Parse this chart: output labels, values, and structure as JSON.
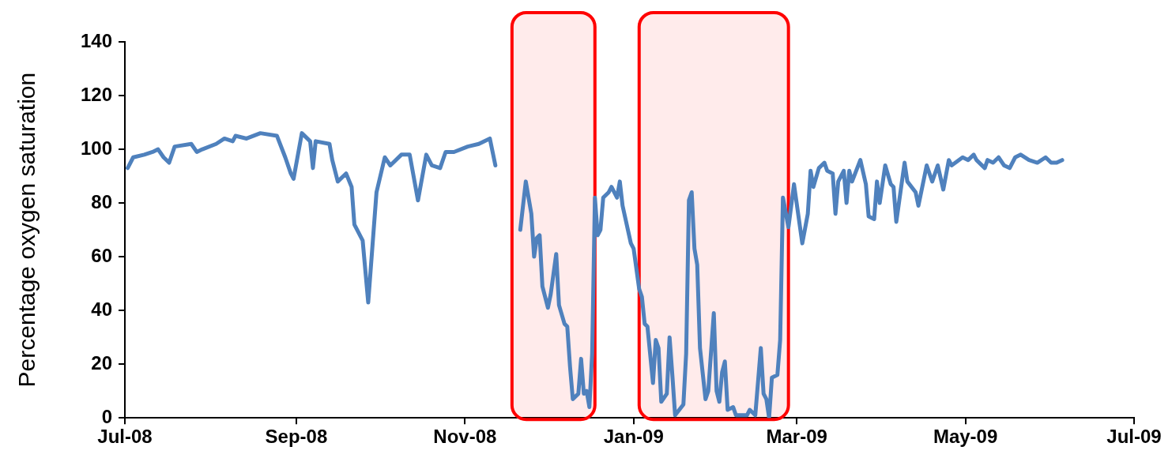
{
  "chart_data": {
    "type": "line",
    "ylabel": "Percentage oxygen saturation",
    "xlim": [
      "2008-07-01",
      "2009-07-01"
    ],
    "xticks": [
      {
        "value": "2008-07-01",
        "label": "Jul-08"
      },
      {
        "value": "2008-09-01",
        "label": "Sep-08"
      },
      {
        "value": "2008-11-01",
        "label": "Nov-08"
      },
      {
        "value": "2009-01-01",
        "label": "Jan-09"
      },
      {
        "value": "2009-03-01",
        "label": "Mar-09"
      },
      {
        "value": "2009-05-01",
        "label": "May-09"
      },
      {
        "value": "2009-07-01",
        "label": "Jul-09"
      }
    ],
    "ylim": [
      0,
      140
    ],
    "yticks": [
      0,
      20,
      40,
      60,
      80,
      100,
      120,
      140
    ],
    "legend": false,
    "marker": "none",
    "line_style": "solid",
    "bands": [
      {
        "axis": "x",
        "from": "2008-11-18",
        "to": "2008-12-18",
        "color": "#ff0000"
      },
      {
        "axis": "x",
        "from": "2009-01-03",
        "to": "2009-02-26",
        "color": "#ff0000"
      }
    ],
    "series": [
      {
        "color": "#4f81bd",
        "x": [
          "2008-07-02",
          "2008-07-04",
          "2008-07-08",
          "2008-07-11",
          "2008-07-13",
          "2008-07-15",
          "2008-07-17",
          "2008-07-19",
          "2008-07-25",
          "2008-07-27",
          "2008-07-29",
          "2008-08-03",
          "2008-08-06",
          "2008-08-09",
          "2008-08-10",
          "2008-08-14",
          "2008-08-19",
          "2008-08-25",
          "2008-08-28",
          "2008-08-30",
          "2008-08-31",
          "2008-09-03",
          "2008-09-06",
          "2008-09-07",
          "2008-09-08",
          "2008-09-13",
          "2008-09-14",
          "2008-09-16",
          "2008-09-19",
          "2008-09-21",
          "2008-09-22",
          "2008-09-25",
          "2008-09-27",
          "2008-09-30",
          "2008-10-03",
          "2008-10-05",
          "2008-10-09",
          "2008-10-12",
          "2008-10-15",
          "2008-10-18",
          "2008-10-20",
          "2008-10-23",
          "2008-10-25",
          "2008-10-28",
          "2008-11-02",
          "2008-11-06",
          "2008-11-10",
          "2008-11-12",
          "2008-11-16",
          "2008-11-21",
          "2008-11-23",
          "2008-11-25",
          "2008-11-26",
          "2008-11-27",
          "2008-11-28",
          "2008-11-29",
          "2008-12-01",
          "2008-12-02",
          "2008-12-04",
          "2008-12-05",
          "2008-12-07",
          "2008-12-08",
          "2008-12-09",
          "2008-12-10",
          "2008-12-12",
          "2008-12-13",
          "2008-12-14",
          "2008-12-15",
          "2008-12-16",
          "2008-12-17",
          "2008-12-18",
          "2008-12-19",
          "2008-12-20",
          "2008-12-21",
          "2008-12-23",
          "2008-12-24",
          "2008-12-26",
          "2008-12-27",
          "2008-12-28",
          "2008-12-31",
          "2009-01-01",
          "2009-01-03",
          "2009-01-04",
          "2009-01-05",
          "2009-01-06",
          "2009-01-08",
          "2009-01-09",
          "2009-01-10",
          "2009-01-11",
          "2009-01-13",
          "2009-01-14",
          "2009-01-15",
          "2009-01-16",
          "2009-01-19",
          "2009-01-20",
          "2009-01-21",
          "2009-01-22",
          "2009-01-23",
          "2009-01-24",
          "2009-01-25",
          "2009-01-27",
          "2009-01-28",
          "2009-01-30",
          "2009-01-31",
          "2009-02-01",
          "2009-02-02",
          "2009-02-03",
          "2009-02-04",
          "2009-02-06",
          "2009-02-07",
          "2009-02-11",
          "2009-02-12",
          "2009-02-14",
          "2009-02-16",
          "2009-02-17",
          "2009-02-18",
          "2009-02-19",
          "2009-02-20",
          "2009-02-22",
          "2009-02-23",
          "2009-02-24",
          "2009-02-26",
          "2009-02-28",
          "2009-03-03",
          "2009-03-05",
          "2009-03-06",
          "2009-03-07",
          "2009-03-09",
          "2009-03-11",
          "2009-03-12",
          "2009-03-14",
          "2009-03-15",
          "2009-03-16",
          "2009-03-18",
          "2009-03-19",
          "2009-03-20",
          "2009-03-21",
          "2009-03-24",
          "2009-03-26",
          "2009-03-27",
          "2009-03-29",
          "2009-03-30",
          "2009-03-31",
          "2009-04-02",
          "2009-04-04",
          "2009-04-05",
          "2009-04-06",
          "2009-04-09",
          "2009-04-10",
          "2009-04-13",
          "2009-04-14",
          "2009-04-17",
          "2009-04-19",
          "2009-04-21",
          "2009-04-23",
          "2009-04-25",
          "2009-04-26",
          "2009-04-30",
          "2009-05-02",
          "2009-05-04",
          "2009-05-05",
          "2009-05-08",
          "2009-05-09",
          "2009-05-11",
          "2009-05-13",
          "2009-05-15",
          "2009-05-17",
          "2009-05-19",
          "2009-05-21",
          "2009-05-24",
          "2009-05-27",
          "2009-05-30",
          "2009-06-01",
          "2009-06-03",
          "2009-06-05"
        ],
        "values": [
          93,
          97,
          98,
          99,
          100,
          97,
          95,
          101,
          102,
          99,
          100,
          102,
          104,
          103,
          105,
          104,
          106,
          105,
          97,
          91,
          89,
          106,
          103,
          93,
          103,
          102,
          96,
          88,
          91,
          86,
          72,
          66,
          43,
          84,
          97,
          94,
          98,
          98,
          81,
          98,
          94,
          93,
          99,
          99,
          101,
          102,
          104,
          94,
          null,
          70,
          88,
          76,
          60,
          67,
          68,
          49,
          41,
          46,
          61,
          42,
          35,
          34,
          19,
          7,
          9,
          22,
          9,
          10,
          4,
          24,
          82,
          68,
          70,
          82,
          84,
          86,
          82,
          88,
          79,
          65,
          63,
          48,
          45,
          35,
          34,
          13,
          29,
          26,
          6,
          9,
          30,
          16,
          1,
          5,
          24,
          81,
          84,
          63,
          57,
          26,
          7,
          10,
          39,
          10,
          6,
          17,
          21,
          3,
          4,
          1,
          1,
          3,
          1,
          26,
          9,
          7,
          0,
          15,
          16,
          29,
          82,
          71,
          87,
          65,
          76,
          92,
          86,
          93,
          95,
          92,
          91,
          76,
          88,
          92,
          80,
          92,
          88,
          96,
          87,
          75,
          74,
          88,
          80,
          94,
          87,
          86,
          73,
          95,
          88,
          84,
          79,
          94,
          88,
          94,
          85,
          96,
          94,
          97,
          96,
          98,
          96,
          93,
          96,
          95,
          97,
          94,
          93,
          97,
          98,
          96,
          95,
          97,
          95,
          95,
          96
        ]
      }
    ]
  }
}
